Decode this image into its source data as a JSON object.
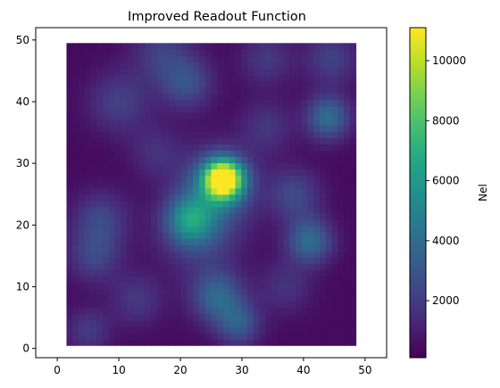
{
  "chart_data": {
    "type": "heatmap",
    "title": "Improved Readout Function",
    "xlabel": "",
    "ylabel": "",
    "xlim": [
      -3.5,
      53.5
    ],
    "ylim": [
      -1.5,
      52
    ],
    "xticks": [
      0,
      10,
      20,
      30,
      40,
      50
    ],
    "yticks": [
      0,
      10,
      20,
      30,
      40,
      50
    ],
    "grid": false,
    "data_extent": {
      "x": [
        1.5,
        48.5
      ],
      "y": [
        0.5,
        49.5
      ]
    },
    "grid_size": [
      48,
      48
    ],
    "colormap": "viridis",
    "colorbar": {
      "label": "Nel",
      "range": [
        100,
        11100
      ],
      "ticks": [
        2000,
        4000,
        6000,
        8000,
        10000
      ]
    },
    "blobs": [
      {
        "x": 27,
        "y": 27.5,
        "amp": 10900,
        "sigma": 2.2
      },
      {
        "x": 26,
        "y": 26.5,
        "amp": 3200,
        "sigma": 4.2
      },
      {
        "x": 21.5,
        "y": 21,
        "amp": 3900,
        "sigma": 2.6
      },
      {
        "x": 23,
        "y": 19,
        "amp": 2200,
        "sigma": 4.5
      },
      {
        "x": 26,
        "y": 8.5,
        "amp": 3300,
        "sigma": 3.0
      },
      {
        "x": 29.5,
        "y": 4,
        "amp": 2600,
        "sigma": 2.5
      },
      {
        "x": 44,
        "y": 37.5,
        "amp": 3600,
        "sigma": 2.5
      },
      {
        "x": 41,
        "y": 17.5,
        "amp": 3600,
        "sigma": 2.6
      },
      {
        "x": 38.5,
        "y": 25,
        "amp": 2100,
        "sigma": 3.0
      },
      {
        "x": 7,
        "y": 21,
        "amp": 2000,
        "sigma": 3.2
      },
      {
        "x": 6,
        "y": 15,
        "amp": 1900,
        "sigma": 3.0
      },
      {
        "x": 5,
        "y": 3,
        "amp": 1600,
        "sigma": 2.5
      },
      {
        "x": 10,
        "y": 40,
        "amp": 1800,
        "sigma": 3.5
      },
      {
        "x": 17,
        "y": 48,
        "amp": 1700,
        "sigma": 3.5
      },
      {
        "x": 21,
        "y": 43,
        "amp": 2300,
        "sigma": 3.0
      },
      {
        "x": 34,
        "y": 47,
        "amp": 1500,
        "sigma": 3.0
      },
      {
        "x": 44.5,
        "y": 47,
        "amp": 1800,
        "sigma": 3.0
      },
      {
        "x": 13,
        "y": 8,
        "amp": 1500,
        "sigma": 3.0
      },
      {
        "x": 37,
        "y": 10,
        "amp": 1300,
        "sigma": 3.0
      },
      {
        "x": 16,
        "y": 32,
        "amp": 1200,
        "sigma": 3.0
      },
      {
        "x": 34,
        "y": 36,
        "amp": 1400,
        "sigma": 3.0
      }
    ]
  }
}
